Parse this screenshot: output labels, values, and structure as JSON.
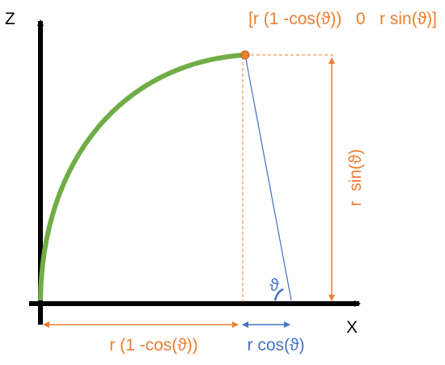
{
  "labels": {
    "z_axis": "Z",
    "x_axis": "X",
    "point": "[r (1 -cos(ϑ))   0   r sin(ϑ)]",
    "offset_x": "r (1 -cos(ϑ))",
    "cos_part": "r cos(ϑ)",
    "height": "r  sin(ϑ)",
    "angle": "ϑ"
  }
}
